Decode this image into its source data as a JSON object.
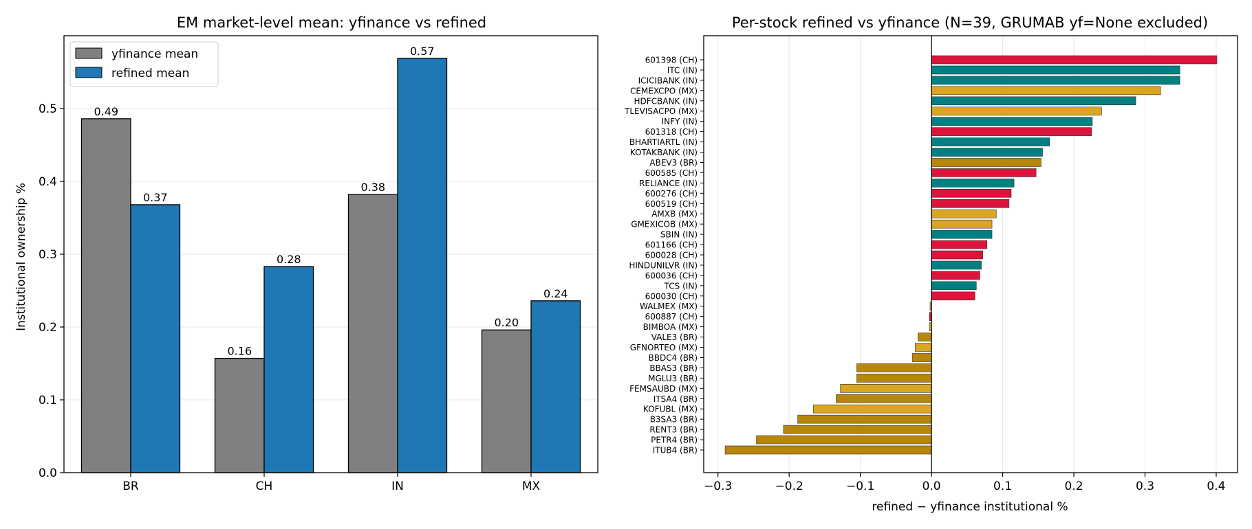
{
  "chart_data": [
    {
      "type": "bar",
      "title": "EM market-level mean: yfinance vs refined",
      "xlabel": "",
      "ylabel": "Institutional ownership %",
      "ylim": [
        0,
        0.6
      ],
      "yticks": [
        "0.0",
        "0.1",
        "0.2",
        "0.3",
        "0.4",
        "0.5"
      ],
      "categories": [
        "BR",
        "CH",
        "IN",
        "MX"
      ],
      "series": [
        {
          "name": "yfinance mean",
          "color": "#808080",
          "values": [
            0.486,
            0.157,
            0.382,
            0.196
          ],
          "labels": [
            "0.49",
            "0.16",
            "0.38",
            "0.20"
          ]
        },
        {
          "name": "refined mean",
          "color": "#1f77b4",
          "values": [
            0.368,
            0.283,
            0.569,
            0.236
          ],
          "labels": [
            "0.37",
            "0.28",
            "0.57",
            "0.24"
          ]
        }
      ],
      "legend": "top-left",
      "grid": "y"
    },
    {
      "type": "bar",
      "orientation": "horizontal",
      "title": "Per-stock refined vs yfinance (N=39, GRUMAB yf=None excluded)",
      "xlabel": "refined − yfinance institutional %",
      "ylabel": "",
      "xlim": [
        -0.32,
        0.43
      ],
      "xticks": [
        "−0.3",
        "−0.2",
        "−0.1",
        "0.0",
        "0.1",
        "0.2",
        "0.3",
        "0.4"
      ],
      "grid": "x",
      "market_colors": {
        "CH": "#dc143c",
        "IN": "#008080",
        "MX": "#daa520",
        "BR": "#b8860b"
      },
      "stocks": [
        {
          "name": "601398 (CH)",
          "market": "CH",
          "value": 0.401
        },
        {
          "name": "ITC (IN)",
          "market": "IN",
          "value": 0.349
        },
        {
          "name": "ICICIBANK (IN)",
          "market": "IN",
          "value": 0.349
        },
        {
          "name": "CEMEXCPO (MX)",
          "market": "MX",
          "value": 0.322
        },
        {
          "name": "HDFCBANK (IN)",
          "market": "IN",
          "value": 0.287
        },
        {
          "name": "TLEVISACPO (MX)",
          "market": "MX",
          "value": 0.239
        },
        {
          "name": "INFY (IN)",
          "market": "IN",
          "value": 0.226
        },
        {
          "name": "601318 (CH)",
          "market": "CH",
          "value": 0.225
        },
        {
          "name": "BHARTIARTL (IN)",
          "market": "IN",
          "value": 0.166
        },
        {
          "name": "KOTAKBANK (IN)",
          "market": "IN",
          "value": 0.156
        },
        {
          "name": "ABEV3 (BR)",
          "market": "BR",
          "value": 0.154
        },
        {
          "name": "600585 (CH)",
          "market": "CH",
          "value": 0.147
        },
        {
          "name": "RELIANCE (IN)",
          "market": "IN",
          "value": 0.116
        },
        {
          "name": "600276 (CH)",
          "market": "CH",
          "value": 0.112
        },
        {
          "name": "600519 (CH)",
          "market": "CH",
          "value": 0.109
        },
        {
          "name": "AMXB (MX)",
          "market": "MX",
          "value": 0.091
        },
        {
          "name": "GMEXICOB (MX)",
          "market": "MX",
          "value": 0.085
        },
        {
          "name": "SBIN (IN)",
          "market": "IN",
          "value": 0.085
        },
        {
          "name": "601166 (CH)",
          "market": "CH",
          "value": 0.078
        },
        {
          "name": "600028 (CH)",
          "market": "CH",
          "value": 0.072
        },
        {
          "name": "HINDUNILVR (IN)",
          "market": "IN",
          "value": 0.07
        },
        {
          "name": "600036 (CH)",
          "market": "CH",
          "value": 0.068
        },
        {
          "name": "TCS (IN)",
          "market": "IN",
          "value": 0.063
        },
        {
          "name": "600030 (CH)",
          "market": "CH",
          "value": 0.061
        },
        {
          "name": "WALMEX (MX)",
          "market": "MX",
          "value": -0.002
        },
        {
          "name": "600887 (CH)",
          "market": "CH",
          "value": -0.003
        },
        {
          "name": "BIMBOA (MX)",
          "market": "MX",
          "value": -0.003
        },
        {
          "name": "VALE3 (BR)",
          "market": "BR",
          "value": -0.019
        },
        {
          "name": "GFNORTEO (MX)",
          "market": "MX",
          "value": -0.023
        },
        {
          "name": "BBDC4 (BR)",
          "market": "BR",
          "value": -0.027
        },
        {
          "name": "BBAS3 (BR)",
          "market": "BR",
          "value": -0.105
        },
        {
          "name": "MGLU3 (BR)",
          "market": "BR",
          "value": -0.105
        },
        {
          "name": "FEMSAUBD (MX)",
          "market": "MX",
          "value": -0.128
        },
        {
          "name": "ITSA4 (BR)",
          "market": "BR",
          "value": -0.134
        },
        {
          "name": "KOFUBL (MX)",
          "market": "MX",
          "value": -0.166
        },
        {
          "name": "B3SA3 (BR)",
          "market": "BR",
          "value": -0.188
        },
        {
          "name": "RENT3 (BR)",
          "market": "BR",
          "value": -0.208
        },
        {
          "name": "PETR4 (BR)",
          "market": "BR",
          "value": -0.246
        },
        {
          "name": "ITUB4 (BR)",
          "market": "BR",
          "value": -0.29
        }
      ]
    }
  ]
}
